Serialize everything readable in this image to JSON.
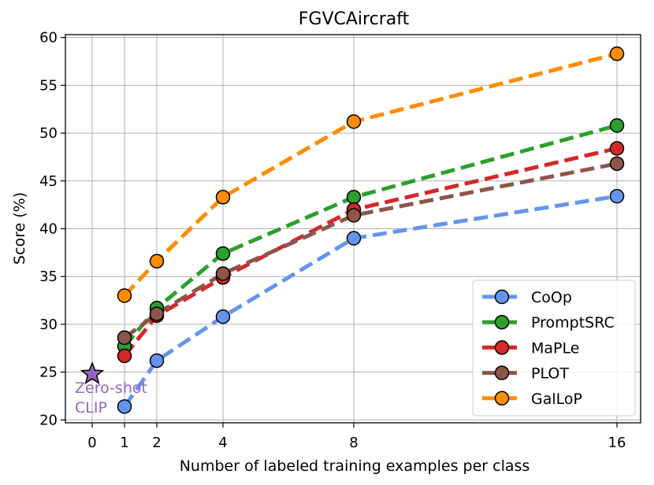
{
  "chart_data": {
    "type": "line",
    "title": "FGVCAircraft",
    "xlabel": "Number of labeled training examples per class",
    "ylabel": "Score (%)",
    "xticks": [
      0,
      1,
      2,
      4,
      8,
      16
    ],
    "yticks": [
      20,
      25,
      30,
      35,
      40,
      45,
      50,
      55,
      60
    ],
    "ylim": [
      19.7,
      60.3
    ],
    "grid": true,
    "legend_position": "bottom-right",
    "x": [
      1,
      2,
      4,
      8,
      16
    ],
    "series": [
      {
        "name": "CoOp",
        "color": "#6495ED",
        "values": [
          21.4,
          26.2,
          30.8,
          39.0,
          43.4
        ]
      },
      {
        "name": "PromptSRC",
        "color": "#2CA02C",
        "values": [
          27.7,
          31.7,
          37.4,
          43.3,
          50.8
        ]
      },
      {
        "name": "MaPLe",
        "color": "#D62728",
        "values": [
          26.7,
          30.9,
          34.9,
          42.0,
          48.4
        ]
      },
      {
        "name": "PLOT",
        "color": "#8C564B",
        "values": [
          28.6,
          31.1,
          35.3,
          41.4,
          46.8
        ]
      },
      {
        "name": "GalLoP",
        "color": "#FF8C00",
        "values": [
          33.0,
          36.6,
          43.3,
          51.2,
          58.3
        ]
      }
    ],
    "zero_shot": {
      "x": 0,
      "value": 24.8,
      "label_line1": "Zero-shot",
      "label_line2": "CLIP",
      "color": "#9467BD"
    }
  }
}
